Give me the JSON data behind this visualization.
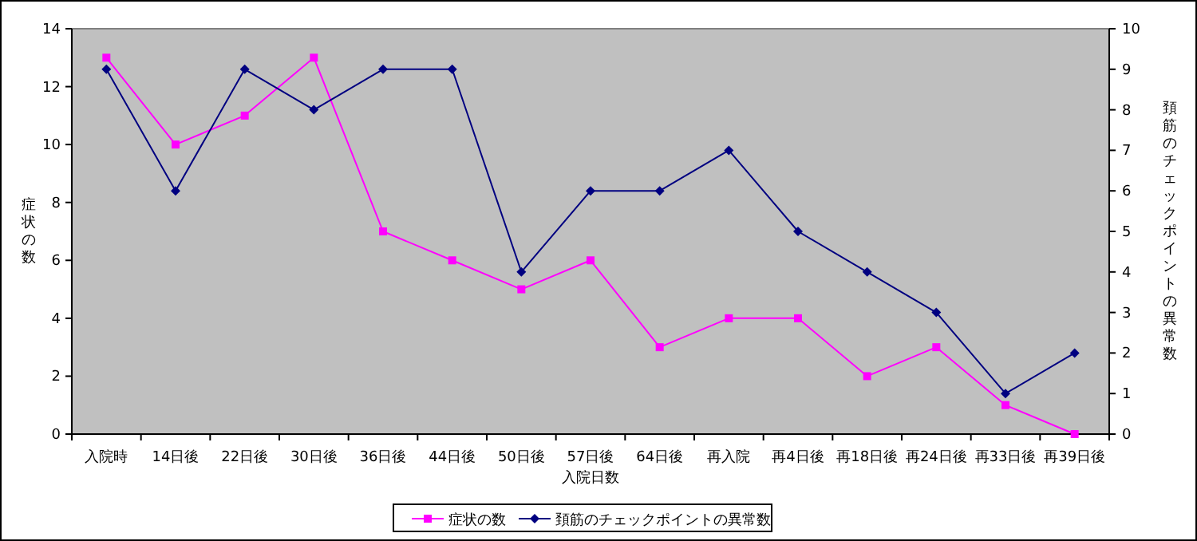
{
  "chart_data": {
    "type": "line",
    "xlabel": "入院日数",
    "ylabel": "症状の数",
    "y2label": "頚筋のチェックポイントの異常数",
    "categories": [
      "入院時",
      "14日後",
      "22日後",
      "30日後",
      "36日後",
      "44日後",
      "50日後",
      "57日後",
      "64日後",
      "再入院",
      "再4日後",
      "再18日後",
      "再24日後",
      "再33日後",
      "再39日後"
    ],
    "series": [
      {
        "name": "症状の数",
        "color": "#ff00ff",
        "marker": "square",
        "values": [
          13,
          10,
          11,
          13,
          7,
          6,
          5,
          6,
          3,
          4,
          4,
          2,
          3,
          1,
          0
        ]
      },
      {
        "name": "頚筋のチェックポイントの異常数",
        "color": "#000080",
        "marker": "diamond",
        "axis": "y2",
        "values": [
          9,
          6,
          9,
          8,
          9,
          9,
          4,
          6,
          6,
          7,
          5,
          4,
          3,
          1,
          2
        ]
      }
    ],
    "ylim": [
      0,
      14
    ],
    "yticks": [
      0,
      2,
      4,
      6,
      8,
      10,
      12,
      14
    ],
    "y2lim": [
      0,
      10
    ],
    "y2ticks": [
      0,
      1,
      2,
      3,
      4,
      5,
      6,
      7,
      8,
      9,
      10
    ],
    "legend": "bottom"
  }
}
